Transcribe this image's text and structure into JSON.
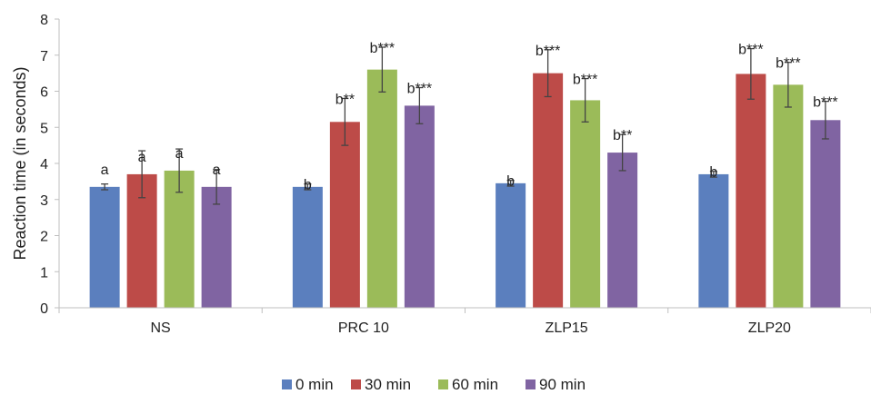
{
  "chart_data": {
    "type": "bar",
    "title": "",
    "xlabel": "",
    "ylabel": "Reaction time (in seconds)",
    "ylim": [
      0,
      8
    ],
    "yticks": [
      0,
      1,
      2,
      3,
      4,
      5,
      6,
      7,
      8
    ],
    "grid": false,
    "legend_position": "bottom",
    "categories": [
      "NS",
      "PRC 10",
      "ZLP15",
      "ZLP20"
    ],
    "series": [
      {
        "name": "0 min",
        "color": "#5b7fbe",
        "values": [
          3.35,
          3.35,
          3.45,
          3.7
        ],
        "errors": [
          0.08,
          0.08,
          0.08,
          0.08
        ],
        "labels": [
          "a",
          "b",
          "b",
          "b"
        ]
      },
      {
        "name": "30 min",
        "color": "#bd4b48",
        "values": [
          3.7,
          5.15,
          6.5,
          6.48
        ],
        "errors": [
          0.65,
          0.65,
          0.65,
          0.7
        ],
        "labels": [
          "a",
          "b**",
          "b***",
          "b***"
        ]
      },
      {
        "name": "60 min",
        "color": "#9bbb59",
        "values": [
          3.8,
          6.6,
          5.75,
          6.18
        ],
        "errors": [
          0.6,
          0.62,
          0.6,
          0.62
        ],
        "labels": [
          "a",
          "b***",
          "b***",
          "b***"
        ]
      },
      {
        "name": "90 min",
        "color": "#8064a2",
        "values": [
          3.35,
          5.6,
          4.3,
          5.2
        ],
        "errors": [
          0.48,
          0.5,
          0.5,
          0.52
        ],
        "labels": [
          "a",
          "b***",
          "b**",
          "b***"
        ]
      }
    ]
  }
}
